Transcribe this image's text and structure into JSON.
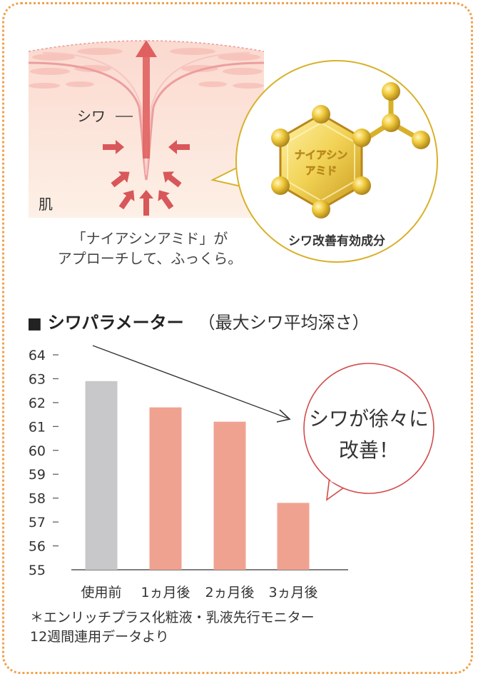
{
  "illustration": {
    "wrinkle_label": "シワ",
    "skin_label": "肌",
    "molecule_label_line1": "ナイアシン",
    "molecule_label_line2": "アミド",
    "circle_caption": "シワ改善有効成分",
    "caption_line1": "「ナイアシンアミド」が",
    "caption_line2": "アプローチして、ふっくら。"
  },
  "section": {
    "marker": "■",
    "title": "シワパラメーター",
    "subtitle": "（最大シワ平均深さ）"
  },
  "callout": {
    "line1": "シワが徐々に",
    "line2": "改善！"
  },
  "footnote": {
    "line1": "＊エンリッチプラス化粧液・乳液先行モニター",
    "line2": "12週間連用データより"
  },
  "colors": {
    "frame": "#f0a24a",
    "bar_baseline": "#c8c8ca",
    "bar_after": "#f0a291",
    "callout_border": "#d24b4b",
    "molecule_gold": "#d8b12a"
  },
  "chart_data": {
    "type": "bar",
    "title": "シワパラメーター",
    "subtitle": "（最大シワ平均深さ）",
    "categories": [
      "使用前",
      "1ヵ月後",
      "2ヵ月後",
      "3ヵ月後"
    ],
    "values": [
      62.9,
      61.8,
      61.2,
      57.8
    ],
    "ylim": [
      55,
      64
    ],
    "yticks": [
      "64",
      "63",
      "62",
      "61",
      "60",
      "59",
      "58",
      "57",
      "56",
      "55"
    ],
    "grid": false,
    "legend": "none"
  }
}
